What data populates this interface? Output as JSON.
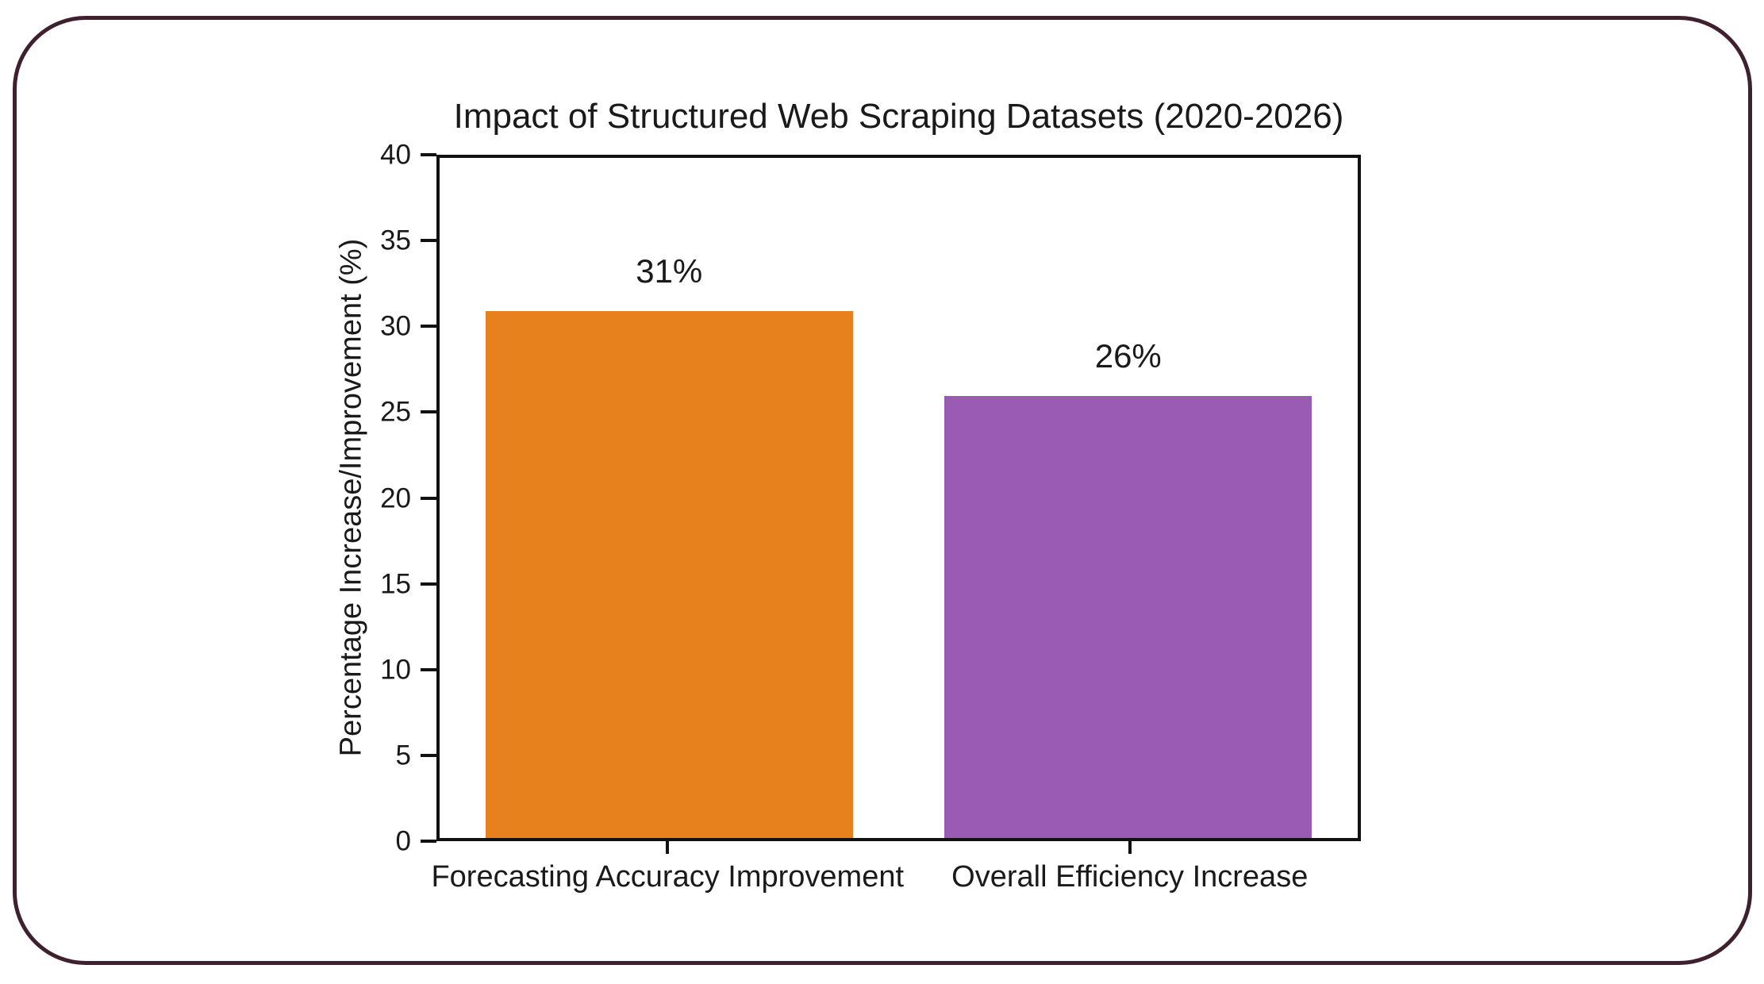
{
  "frame": {
    "border_color": "#3e202e",
    "background": "#ffffff"
  },
  "chart_data": {
    "type": "bar",
    "title": "Impact of Structured Web Scraping Datasets (2020-2026)",
    "categories": [
      "Forecasting Accuracy Improvement",
      "Overall Efficiency Increase"
    ],
    "values": [
      31,
      26
    ],
    "value_labels": [
      "31%",
      "26%"
    ],
    "series": [
      {
        "name": "Forecasting Accuracy Improvement",
        "value": 31,
        "color": "#e6811e"
      },
      {
        "name": "Overall Efficiency Increase",
        "value": 26,
        "color": "#9a5bb5"
      }
    ],
    "bar_colors": [
      "#e6811e",
      "#9a5bb5"
    ],
    "xlabel": "",
    "ylabel": "Percentage Increase/Improvement (%)",
    "ylim": [
      0,
      40
    ],
    "y_ticks": [
      0,
      5,
      10,
      15,
      20,
      25,
      30,
      35,
      40
    ],
    "grid": false,
    "legend_position": "none",
    "axis_color": "#111111",
    "text_color": "#1a1a1a"
  }
}
